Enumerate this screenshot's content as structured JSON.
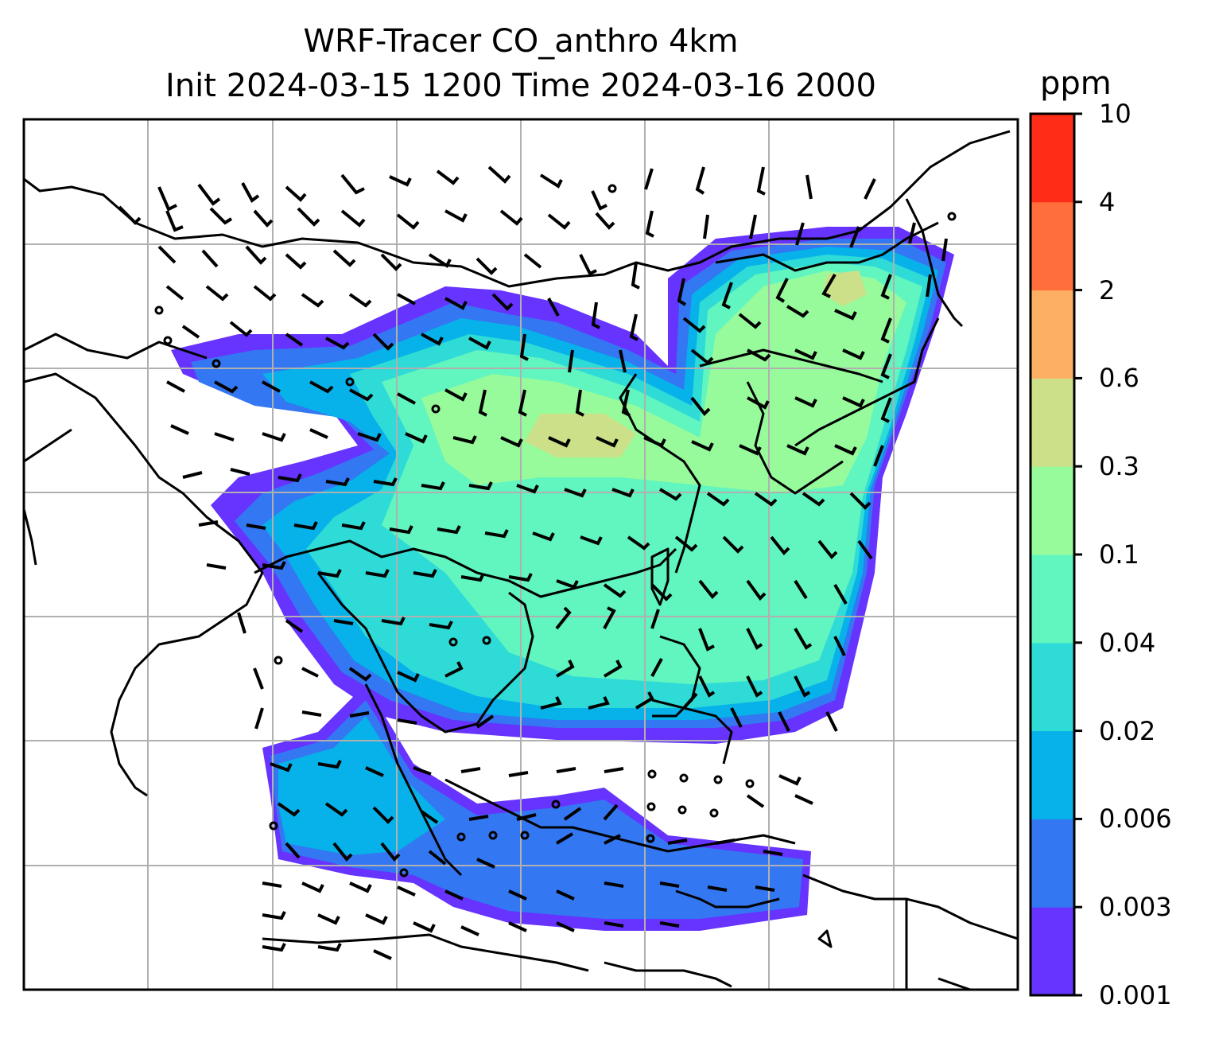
{
  "title": {
    "line1": "WRF-Tracer CO_anthro 4km",
    "line2": "Init 2024-03-15 1200 Time 2024-03-16 2000"
  },
  "colorbar": {
    "unit": "ppm",
    "levels": [
      "0.001",
      "0.003",
      "0.006",
      "0.02",
      "0.04",
      "0.1",
      "0.3",
      "0.6",
      "2",
      "4",
      "10"
    ],
    "colors": [
      "#6633ff",
      "#3477f2",
      "#06b2e9",
      "#2fdbd6",
      "#61f5c0",
      "#97fb9c",
      "#cbe088",
      "#fdb063",
      "#ff6e3b",
      "#ff2c17"
    ]
  },
  "map": {
    "field": "CO_anthro",
    "wind_symbols": "barbs",
    "coastlines": true,
    "gridlines": true
  }
}
